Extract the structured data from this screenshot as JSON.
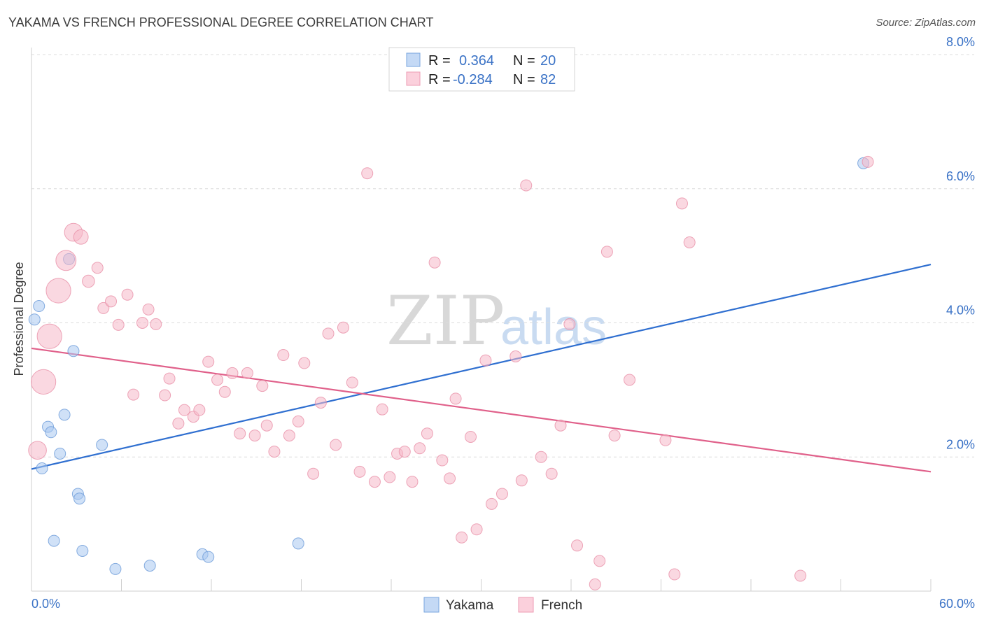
{
  "header": {
    "title": "YAKAMA VS FRENCH PROFESSIONAL DEGREE CORRELATION CHART",
    "source": "Source: ZipAtlas.com"
  },
  "watermark": {
    "zip": "ZIP",
    "atlas": "atlas"
  },
  "legend_top": {
    "rows": [
      {
        "r_label": "R =",
        "r_value": "0.364",
        "n_label": "N =",
        "n_value": "20",
        "color": "#a9c8f0"
      },
      {
        "r_label": "R =",
        "r_value": "-0.284",
        "n_label": "N =",
        "n_value": "82",
        "color": "#f6b8c8"
      }
    ]
  },
  "chart_data": {
    "type": "scatter",
    "title": "YAKAMA VS FRENCH PROFESSIONAL DEGREE CORRELATION CHART",
    "xlabel": "",
    "ylabel": "Professional Degree",
    "xlim": [
      0,
      60
    ],
    "ylim": [
      0,
      8.0
    ],
    "x_tick_labels": {
      "min": "0.0%",
      "max": "60.0%"
    },
    "y_ticks": [
      2.0,
      4.0,
      6.0,
      8.0
    ],
    "y_tick_labels": [
      "2.0%",
      "4.0%",
      "6.0%",
      "8.0%"
    ],
    "grid": true,
    "legend_position": "top-center",
    "series": [
      {
        "name": "Yakama",
        "color": "#a9c8f0",
        "stroke": "#6a9ad8",
        "trend_color": "#2f6fd0",
        "trend": {
          "x0": 0.0,
          "y0": 1.82,
          "x1": 60.0,
          "y1": 4.87
        },
        "points": [
          {
            "x": 0.2,
            "y": 4.05,
            "s": 1
          },
          {
            "x": 0.5,
            "y": 4.25,
            "s": 1
          },
          {
            "x": 0.7,
            "y": 1.83,
            "s": 1
          },
          {
            "x": 1.1,
            "y": 2.45,
            "s": 1
          },
          {
            "x": 1.3,
            "y": 2.37,
            "s": 1
          },
          {
            "x": 1.5,
            "y": 0.75,
            "s": 1
          },
          {
            "x": 1.9,
            "y": 2.05,
            "s": 1
          },
          {
            "x": 2.2,
            "y": 2.63,
            "s": 1
          },
          {
            "x": 2.5,
            "y": 4.95,
            "s": 1
          },
          {
            "x": 2.8,
            "y": 3.58,
            "s": 1
          },
          {
            "x": 3.1,
            "y": 1.45,
            "s": 1
          },
          {
            "x": 3.2,
            "y": 1.38,
            "s": 1
          },
          {
            "x": 3.4,
            "y": 0.6,
            "s": 1
          },
          {
            "x": 4.7,
            "y": 2.18,
            "s": 1
          },
          {
            "x": 5.6,
            "y": 0.33,
            "s": 1
          },
          {
            "x": 7.9,
            "y": 0.38,
            "s": 1
          },
          {
            "x": 11.4,
            "y": 0.55,
            "s": 1
          },
          {
            "x": 11.8,
            "y": 0.51,
            "s": 1
          },
          {
            "x": 17.8,
            "y": 0.71,
            "s": 1
          },
          {
            "x": 55.5,
            "y": 6.38,
            "s": 1
          }
        ]
      },
      {
        "name": "French",
        "color": "#f6b8c8",
        "stroke": "#e890a8",
        "trend_color": "#e0608a",
        "trend": {
          "x0": 0.0,
          "y0": 3.62,
          "x1": 60.0,
          "y1": 1.78
        },
        "points": [
          {
            "x": 0.4,
            "y": 2.1,
            "s": 1.6
          },
          {
            "x": 0.8,
            "y": 3.12,
            "s": 2.2
          },
          {
            "x": 1.2,
            "y": 3.8,
            "s": 2.2
          },
          {
            "x": 1.8,
            "y": 4.48,
            "s": 2.2
          },
          {
            "x": 2.3,
            "y": 4.93,
            "s": 1.8
          },
          {
            "x": 2.8,
            "y": 5.35,
            "s": 1.6
          },
          {
            "x": 3.3,
            "y": 5.28,
            "s": 1.3
          },
          {
            "x": 3.8,
            "y": 4.62,
            "s": 1.1
          },
          {
            "x": 4.4,
            "y": 4.82,
            "s": 1
          },
          {
            "x": 4.8,
            "y": 4.22,
            "s": 1
          },
          {
            "x": 5.3,
            "y": 4.32,
            "s": 1
          },
          {
            "x": 5.8,
            "y": 3.97,
            "s": 1
          },
          {
            "x": 6.4,
            "y": 4.42,
            "s": 1
          },
          {
            "x": 6.8,
            "y": 2.93,
            "s": 1
          },
          {
            "x": 7.4,
            "y": 4.0,
            "s": 1
          },
          {
            "x": 7.8,
            "y": 4.2,
            "s": 1
          },
          {
            "x": 8.3,
            "y": 3.98,
            "s": 1
          },
          {
            "x": 8.9,
            "y": 2.92,
            "s": 1
          },
          {
            "x": 9.2,
            "y": 3.17,
            "s": 1
          },
          {
            "x": 9.8,
            "y": 2.5,
            "s": 1
          },
          {
            "x": 10.2,
            "y": 2.7,
            "s": 1
          },
          {
            "x": 10.8,
            "y": 2.6,
            "s": 1
          },
          {
            "x": 11.2,
            "y": 2.7,
            "s": 1
          },
          {
            "x": 11.8,
            "y": 3.42,
            "s": 1
          },
          {
            "x": 12.4,
            "y": 3.15,
            "s": 1
          },
          {
            "x": 12.9,
            "y": 2.97,
            "s": 1
          },
          {
            "x": 13.4,
            "y": 3.25,
            "s": 1
          },
          {
            "x": 13.9,
            "y": 2.35,
            "s": 1
          },
          {
            "x": 14.4,
            "y": 3.25,
            "s": 1
          },
          {
            "x": 14.9,
            "y": 2.32,
            "s": 1
          },
          {
            "x": 15.4,
            "y": 3.06,
            "s": 1
          },
          {
            "x": 15.7,
            "y": 2.47,
            "s": 1
          },
          {
            "x": 16.2,
            "y": 2.08,
            "s": 1
          },
          {
            "x": 16.8,
            "y": 3.52,
            "s": 1
          },
          {
            "x": 17.2,
            "y": 2.32,
            "s": 1
          },
          {
            "x": 17.8,
            "y": 2.53,
            "s": 1
          },
          {
            "x": 18.2,
            "y": 3.4,
            "s": 1
          },
          {
            "x": 18.8,
            "y": 1.75,
            "s": 1
          },
          {
            "x": 19.3,
            "y": 2.81,
            "s": 1
          },
          {
            "x": 19.8,
            "y": 3.84,
            "s": 1
          },
          {
            "x": 20.3,
            "y": 2.18,
            "s": 1
          },
          {
            "x": 20.8,
            "y": 3.93,
            "s": 1
          },
          {
            "x": 21.4,
            "y": 3.11,
            "s": 1
          },
          {
            "x": 21.9,
            "y": 1.78,
            "s": 1
          },
          {
            "x": 22.4,
            "y": 6.23,
            "s": 1
          },
          {
            "x": 22.9,
            "y": 1.63,
            "s": 1
          },
          {
            "x": 23.4,
            "y": 2.71,
            "s": 1
          },
          {
            "x": 23.9,
            "y": 1.7,
            "s": 1
          },
          {
            "x": 24.4,
            "y": 2.05,
            "s": 1
          },
          {
            "x": 24.9,
            "y": 2.08,
            "s": 1
          },
          {
            "x": 25.4,
            "y": 1.63,
            "s": 1
          },
          {
            "x": 25.9,
            "y": 2.13,
            "s": 1
          },
          {
            "x": 26.4,
            "y": 2.35,
            "s": 1
          },
          {
            "x": 26.9,
            "y": 4.9,
            "s": 1
          },
          {
            "x": 27.4,
            "y": 1.95,
            "s": 1
          },
          {
            "x": 27.9,
            "y": 1.68,
            "s": 1
          },
          {
            "x": 28.3,
            "y": 2.87,
            "s": 1
          },
          {
            "x": 28.7,
            "y": 0.8,
            "s": 1
          },
          {
            "x": 29.3,
            "y": 2.3,
            "s": 1
          },
          {
            "x": 29.7,
            "y": 0.92,
            "s": 1
          },
          {
            "x": 30.3,
            "y": 3.44,
            "s": 1
          },
          {
            "x": 30.7,
            "y": 1.3,
            "s": 1
          },
          {
            "x": 31.4,
            "y": 1.45,
            "s": 1
          },
          {
            "x": 32.3,
            "y": 3.5,
            "s": 1
          },
          {
            "x": 32.7,
            "y": 1.65,
            "s": 1
          },
          {
            "x": 33.0,
            "y": 6.05,
            "s": 1
          },
          {
            "x": 34.0,
            "y": 2.0,
            "s": 1
          },
          {
            "x": 34.7,
            "y": 1.75,
            "s": 1
          },
          {
            "x": 35.3,
            "y": 2.47,
            "s": 1
          },
          {
            "x": 35.9,
            "y": 3.98,
            "s": 1
          },
          {
            "x": 36.4,
            "y": 0.68,
            "s": 1
          },
          {
            "x": 37.6,
            "y": 0.1,
            "s": 1
          },
          {
            "x": 37.9,
            "y": 0.45,
            "s": 1
          },
          {
            "x": 38.4,
            "y": 5.06,
            "s": 1
          },
          {
            "x": 38.9,
            "y": 2.32,
            "s": 1
          },
          {
            "x": 39.9,
            "y": 3.15,
            "s": 1
          },
          {
            "x": 42.3,
            "y": 2.25,
            "s": 1
          },
          {
            "x": 42.9,
            "y": 0.25,
            "s": 1
          },
          {
            "x": 43.4,
            "y": 5.78,
            "s": 1
          },
          {
            "x": 43.9,
            "y": 5.2,
            "s": 1
          },
          {
            "x": 51.3,
            "y": 0.23,
            "s": 1
          },
          {
            "x": 55.8,
            "y": 6.4,
            "s": 1
          }
        ]
      }
    ]
  }
}
